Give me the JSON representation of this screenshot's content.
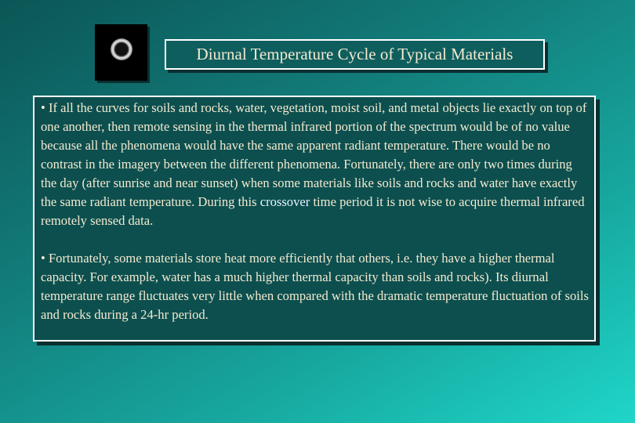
{
  "slide": {
    "title": "Diurnal Temperature Cycle of Typical Materials",
    "paragraphs": [
      {
        "before": "• If all the curves for soils and rocks, water, vegetation, moist soil, and metal objects lie exactly on top of one another, then remote sensing in the thermal infrared portion of the spectrum would be of no value because all the phenomena would have the same apparent radiant temperature. There would be no contrast in the imagery between the different phenomena. Fortunately, there are only two times during the day (after sunrise and near sunset) when some materials like soils and rocks and water have exactly the same radiant temperature. During this ",
        "highlight": "crossover",
        "after": " time period it is not wise to acquire thermal infrared remotely sensed data."
      },
      {
        "before": "• Fortunately, some materials store heat more efficiently that others, i.e. they have a higher thermal capacity. For example, water has a much higher thermal capacity than soils and rocks). Its diurnal temperature range fluctuates very little when compared with the dramatic temperature fluctuation of soils and rocks during a 24-hr period."
      }
    ]
  }
}
